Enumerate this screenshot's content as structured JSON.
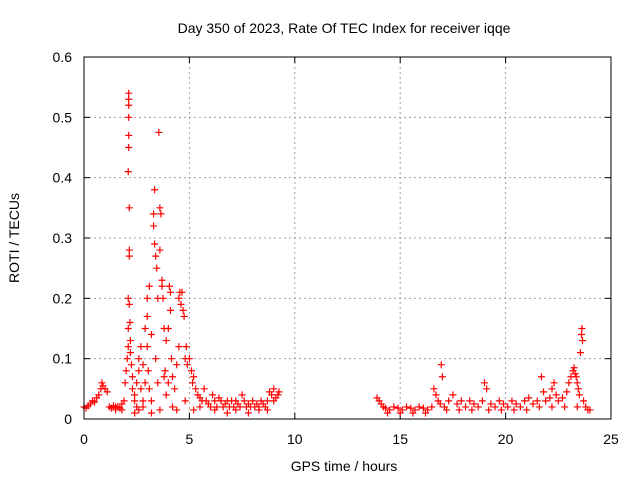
{
  "chart_data": {
    "type": "scatter",
    "title": "Day 350 of 2023, Rate Of TEC Index for receiver iqqe",
    "xlabel": "GPS time / hours",
    "ylabel": "ROTI / TECUs",
    "xlim": [
      0,
      25
    ],
    "ylim": [
      0,
      0.6
    ],
    "xticks": [
      0,
      5,
      10,
      15,
      20,
      25
    ],
    "yticks": [
      0,
      0.1,
      0.2,
      0.3,
      0.4,
      0.5,
      0.6
    ],
    "ytick_labels": [
      "0",
      "0.1",
      "0.2",
      "0.3",
      "0.4",
      "0.5",
      "0.6"
    ],
    "grid": true,
    "marker": "+",
    "color": "#ff0000",
    "series": [
      {
        "points": [
          [
            0.0,
            0.02
          ],
          [
            0.1,
            0.018
          ],
          [
            0.2,
            0.022
          ],
          [
            0.3,
            0.025
          ],
          [
            0.4,
            0.03
          ],
          [
            0.5,
            0.028
          ],
          [
            0.6,
            0.035
          ],
          [
            0.7,
            0.04
          ],
          [
            0.8,
            0.05
          ],
          [
            0.85,
            0.06
          ],
          [
            0.9,
            0.055
          ],
          [
            1.0,
            0.05
          ],
          [
            1.1,
            0.045
          ],
          [
            1.2,
            0.02
          ],
          [
            1.3,
            0.018
          ],
          [
            1.4,
            0.022
          ],
          [
            1.5,
            0.015
          ],
          [
            1.6,
            0.02
          ],
          [
            1.7,
            0.018
          ],
          [
            1.8,
            0.025
          ],
          [
            1.9,
            0.03
          ],
          [
            1.95,
            0.06
          ],
          [
            2.0,
            0.08
          ],
          [
            2.05,
            0.1
          ],
          [
            2.1,
            0.12
          ],
          [
            2.1,
            0.15
          ],
          [
            2.1,
            0.2
          ],
          [
            2.1,
            0.41
          ],
          [
            2.12,
            0.45
          ],
          [
            2.12,
            0.47
          ],
          [
            2.12,
            0.5
          ],
          [
            2.12,
            0.52
          ],
          [
            2.12,
            0.53
          ],
          [
            2.12,
            0.54
          ],
          [
            2.15,
            0.35
          ],
          [
            2.15,
            0.28
          ],
          [
            2.15,
            0.27
          ],
          [
            2.15,
            0.19
          ],
          [
            2.18,
            0.16
          ],
          [
            2.2,
            0.13
          ],
          [
            2.2,
            0.11
          ],
          [
            2.25,
            0.09
          ],
          [
            2.3,
            0.07
          ],
          [
            2.3,
            0.05
          ],
          [
            2.4,
            0.04
          ],
          [
            2.4,
            0.03
          ],
          [
            2.5,
            0.06
          ],
          [
            2.5,
            0.02
          ],
          [
            2.6,
            0.08
          ],
          [
            2.6,
            0.1
          ],
          [
            2.7,
            0.12
          ],
          [
            2.7,
            0.05
          ],
          [
            2.8,
            0.09
          ],
          [
            2.8,
            0.03
          ],
          [
            2.9,
            0.15
          ],
          [
            2.9,
            0.06
          ],
          [
            3.0,
            0.2
          ],
          [
            3.0,
            0.17
          ],
          [
            3.0,
            0.12
          ],
          [
            3.05,
            0.08
          ],
          [
            3.1,
            0.22
          ],
          [
            3.1,
            0.05
          ],
          [
            3.2,
            0.14
          ],
          [
            3.2,
            0.03
          ],
          [
            3.3,
            0.32
          ],
          [
            3.3,
            0.34
          ],
          [
            3.35,
            0.38
          ],
          [
            3.35,
            0.29
          ],
          [
            3.4,
            0.27
          ],
          [
            3.4,
            0.1
          ],
          [
            3.45,
            0.25
          ],
          [
            3.5,
            0.2
          ],
          [
            3.5,
            0.06
          ],
          [
            3.55,
            0.475
          ],
          [
            3.6,
            0.35
          ],
          [
            3.6,
            0.28
          ],
          [
            3.65,
            0.34
          ],
          [
            3.7,
            0.23
          ],
          [
            3.7,
            0.22
          ],
          [
            3.75,
            0.2
          ],
          [
            3.8,
            0.15
          ],
          [
            3.8,
            0.07
          ],
          [
            3.85,
            0.08
          ],
          [
            3.9,
            0.13
          ],
          [
            3.9,
            0.04
          ],
          [
            4.0,
            0.15
          ],
          [
            4.0,
            0.06
          ],
          [
            4.05,
            0.22
          ],
          [
            4.1,
            0.21
          ],
          [
            4.1,
            0.18
          ],
          [
            4.15,
            0.1
          ],
          [
            4.2,
            0.07
          ],
          [
            4.3,
            0.05
          ],
          [
            4.4,
            0.09
          ],
          [
            4.5,
            0.12
          ],
          [
            4.5,
            0.2
          ],
          [
            4.55,
            0.21
          ],
          [
            4.6,
            0.19
          ],
          [
            4.65,
            0.21
          ],
          [
            4.7,
            0.18
          ],
          [
            4.75,
            0.17
          ],
          [
            4.8,
            0.1
          ],
          [
            4.85,
            0.12
          ],
          [
            4.9,
            0.09
          ],
          [
            5.0,
            0.1
          ],
          [
            5.1,
            0.08
          ],
          [
            5.15,
            0.06
          ],
          [
            5.2,
            0.07
          ],
          [
            5.3,
            0.05
          ],
          [
            5.4,
            0.04
          ],
          [
            5.5,
            0.035
          ],
          [
            5.6,
            0.03
          ],
          [
            5.7,
            0.05
          ],
          [
            5.8,
            0.03
          ],
          [
            5.9,
            0.025
          ],
          [
            6.0,
            0.02
          ],
          [
            6.1,
            0.04
          ],
          [
            6.2,
            0.03
          ],
          [
            6.3,
            0.02
          ],
          [
            6.4,
            0.035
          ],
          [
            6.5,
            0.03
          ],
          [
            6.6,
            0.02
          ],
          [
            6.7,
            0.025
          ],
          [
            6.8,
            0.03
          ],
          [
            6.9,
            0.02
          ],
          [
            7.0,
            0.03
          ],
          [
            7.1,
            0.02
          ],
          [
            7.2,
            0.03
          ],
          [
            7.3,
            0.025
          ],
          [
            7.4,
            0.02
          ],
          [
            7.5,
            0.04
          ],
          [
            7.6,
            0.03
          ],
          [
            7.7,
            0.02
          ],
          [
            7.8,
            0.025
          ],
          [
            7.9,
            0.02
          ],
          [
            8.0,
            0.03
          ],
          [
            8.1,
            0.02
          ],
          [
            8.2,
            0.025
          ],
          [
            8.3,
            0.02
          ],
          [
            8.4,
            0.03
          ],
          [
            8.5,
            0.025
          ],
          [
            8.6,
            0.02
          ],
          [
            8.7,
            0.03
          ],
          [
            8.8,
            0.045
          ],
          [
            8.9,
            0.04
          ],
          [
            9.0,
            0.05
          ],
          [
            9.1,
            0.035
          ],
          [
            9.2,
            0.04
          ],
          [
            9.25,
            0.045
          ],
          [
            1.5,
            0.02
          ],
          [
            1.8,
            0.015
          ],
          [
            2.4,
            0.01
          ],
          [
            2.6,
            0.015
          ],
          [
            2.8,
            0.02
          ],
          [
            3.2,
            0.01
          ],
          [
            3.6,
            0.015
          ],
          [
            4.2,
            0.02
          ],
          [
            4.4,
            0.015
          ],
          [
            4.8,
            0.03
          ],
          [
            5.2,
            0.015
          ],
          [
            5.5,
            0.02
          ],
          [
            6.2,
            0.015
          ],
          [
            6.8,
            0.01
          ],
          [
            7.2,
            0.015
          ],
          [
            7.8,
            0.01
          ],
          [
            8.3,
            0.015
          ],
          [
            8.7,
            0.015
          ],
          [
            9.0,
            0.03
          ],
          [
            13.9,
            0.035
          ],
          [
            14.0,
            0.03
          ],
          [
            14.1,
            0.025
          ],
          [
            14.2,
            0.02
          ],
          [
            14.3,
            0.018
          ],
          [
            14.5,
            0.015
          ],
          [
            14.7,
            0.02
          ],
          [
            14.9,
            0.018
          ],
          [
            15.1,
            0.015
          ],
          [
            15.3,
            0.02
          ],
          [
            15.5,
            0.018
          ],
          [
            15.7,
            0.015
          ],
          [
            15.9,
            0.02
          ],
          [
            16.1,
            0.018
          ],
          [
            16.3,
            0.015
          ],
          [
            16.5,
            0.02
          ],
          [
            16.6,
            0.05
          ],
          [
            16.7,
            0.04
          ],
          [
            16.8,
            0.03
          ],
          [
            16.9,
            0.025
          ],
          [
            16.95,
            0.09
          ],
          [
            17.0,
            0.07
          ],
          [
            17.1,
            0.02
          ],
          [
            17.3,
            0.03
          ],
          [
            17.5,
            0.04
          ],
          [
            17.7,
            0.025
          ],
          [
            17.9,
            0.03
          ],
          [
            18.1,
            0.02
          ],
          [
            18.3,
            0.03
          ],
          [
            18.5,
            0.025
          ],
          [
            18.7,
            0.02
          ],
          [
            18.9,
            0.03
          ],
          [
            19.0,
            0.06
          ],
          [
            19.1,
            0.05
          ],
          [
            19.3,
            0.025
          ],
          [
            19.5,
            0.02
          ],
          [
            19.7,
            0.03
          ],
          [
            19.9,
            0.025
          ],
          [
            20.1,
            0.02
          ],
          [
            20.3,
            0.03
          ],
          [
            20.5,
            0.025
          ],
          [
            20.7,
            0.02
          ],
          [
            20.9,
            0.03
          ],
          [
            21.1,
            0.035
          ],
          [
            21.3,
            0.025
          ],
          [
            21.5,
            0.03
          ],
          [
            21.7,
            0.07
          ],
          [
            21.8,
            0.045
          ],
          [
            21.9,
            0.03
          ],
          [
            22.1,
            0.035
          ],
          [
            22.2,
            0.05
          ],
          [
            22.3,
            0.06
          ],
          [
            22.4,
            0.04
          ],
          [
            22.5,
            0.03
          ],
          [
            22.7,
            0.035
          ],
          [
            22.9,
            0.045
          ],
          [
            23.0,
            0.06
          ],
          [
            23.1,
            0.07
          ],
          [
            23.2,
            0.08
          ],
          [
            23.25,
            0.085
          ],
          [
            23.3,
            0.075
          ],
          [
            23.35,
            0.07
          ],
          [
            23.4,
            0.06
          ],
          [
            23.45,
            0.05
          ],
          [
            23.5,
            0.04
          ],
          [
            23.55,
            0.11
          ],
          [
            23.6,
            0.14
          ],
          [
            23.62,
            0.15
          ],
          [
            23.65,
            0.13
          ],
          [
            23.7,
            0.03
          ],
          [
            23.8,
            0.02
          ],
          [
            23.9,
            0.015
          ],
          [
            24.0,
            0.015
          ],
          [
            14.4,
            0.01
          ],
          [
            15.0,
            0.01
          ],
          [
            15.6,
            0.01
          ],
          [
            16.2,
            0.01
          ],
          [
            17.2,
            0.015
          ],
          [
            17.8,
            0.015
          ],
          [
            18.4,
            0.015
          ],
          [
            19.2,
            0.015
          ],
          [
            19.8,
            0.015
          ],
          [
            20.4,
            0.015
          ],
          [
            21.0,
            0.015
          ],
          [
            21.6,
            0.02
          ],
          [
            22.2,
            0.02
          ],
          [
            22.8,
            0.02
          ],
          [
            23.4,
            0.02
          ]
        ]
      }
    ]
  }
}
